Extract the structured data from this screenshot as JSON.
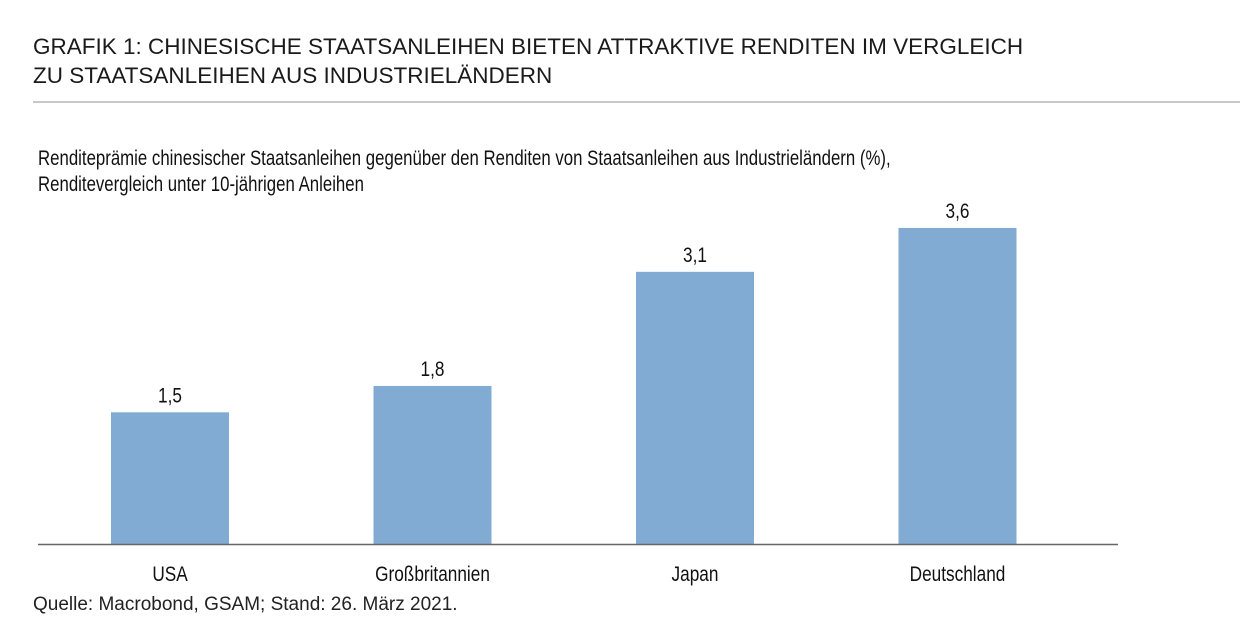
{
  "title_lines": [
    "GRAFIK 1: CHINESISCHE STAATSANLEIHEN BIETEN ATTRAKTIVE RENDITEN IM VERGLEICH",
    "ZU STAATSANLEIHEN AUS INDUSTRIELÄNDERN"
  ],
  "subtitle_lines": [
    "Renditeprämie chinesischer Staatsanleihen gegenüber den Renditen von Staatsanleihen aus Industrieländern (%),",
    "Renditevergleich unter 10-jährigen Anleihen"
  ],
  "source": "Quelle: Macrobond, GSAM; Stand: 26. März 2021.",
  "colors": {
    "bar": "#82abd4",
    "axis": "#666666"
  },
  "chart_data": {
    "type": "bar",
    "title": "GRAFIK 1: CHINESISCHE STAATSANLEIHEN BIETEN ATTRAKTIVE RENDITEN IM VERGLEICH ZU STAATSANLEIHEN AUS INDUSTRIELÄNDERN",
    "subtitle": "Renditeprämie chinesischer Staatsanleihen gegenüber den Renditen von Staatsanleihen aus Industrieländern (%), Renditevergleich unter 10-jährigen Anleihen",
    "categories": [
      "USA",
      "Großbritannien",
      "Japan",
      "Deutschland"
    ],
    "values": [
      1.5,
      1.8,
      3.1,
      3.6
    ],
    "value_labels": [
      "1,5",
      "1,8",
      "3,1",
      "3,6"
    ],
    "xlabel": "",
    "ylabel": "",
    "ylim": [
      0,
      3.6
    ],
    "grid": false,
    "legend": "none"
  }
}
